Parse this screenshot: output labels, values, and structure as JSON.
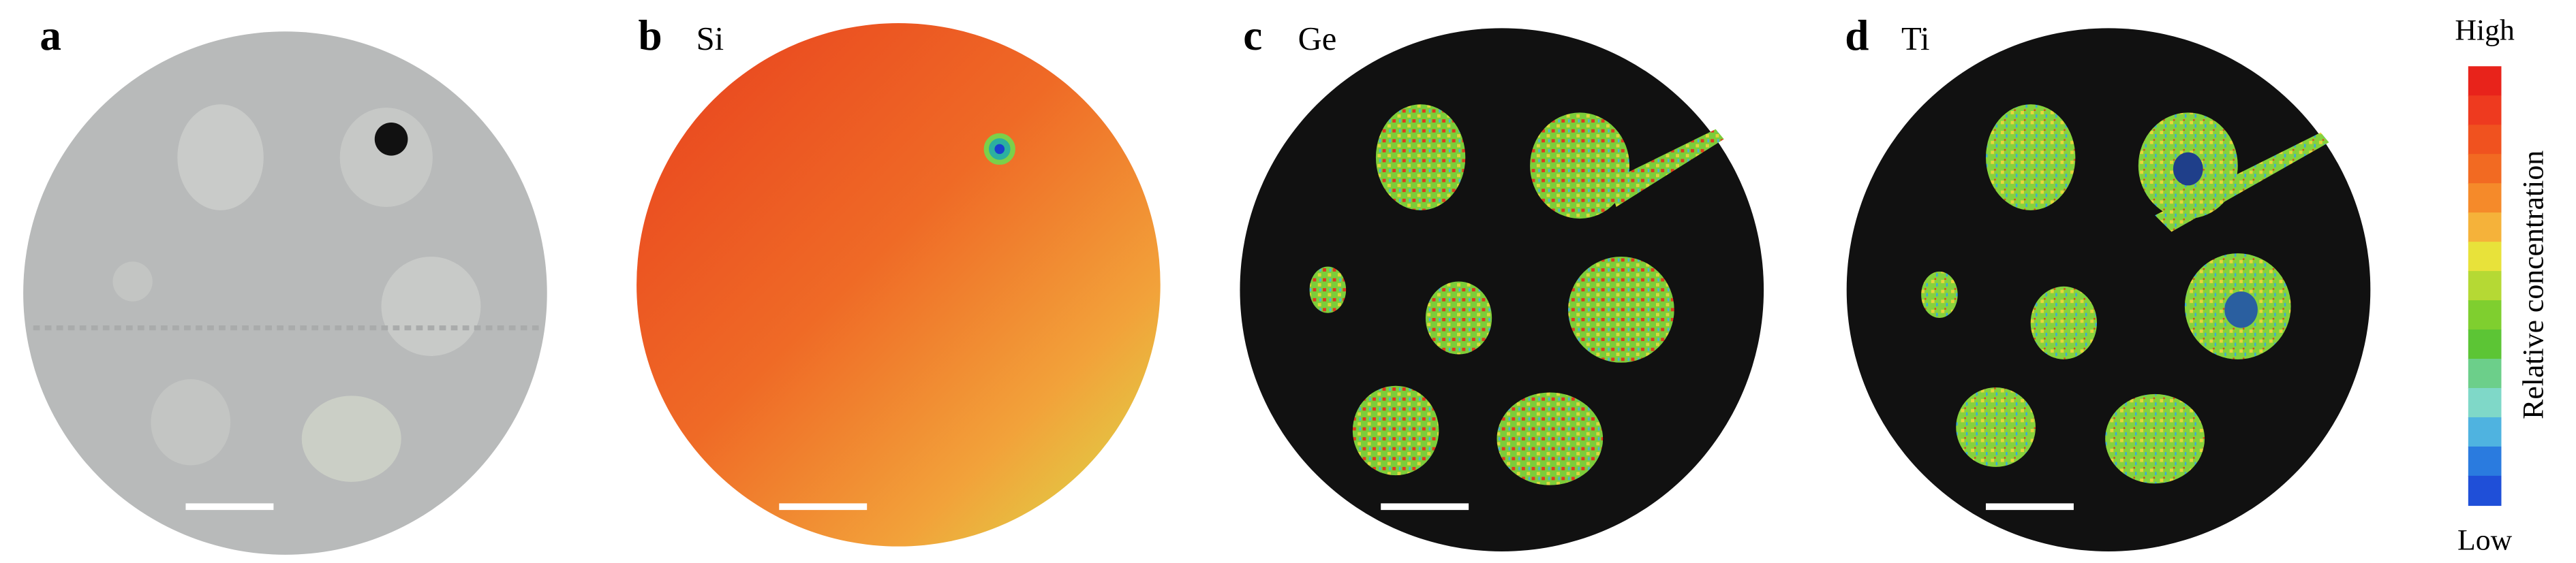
{
  "panels": [
    {
      "label": "a"
    },
    {
      "label": "b",
      "element": "Si"
    },
    {
      "label": "c",
      "element": "Ge"
    },
    {
      "label": "d",
      "element": "Ti"
    }
  ],
  "colorbar": {
    "high": "High",
    "low": "Low",
    "title": "Relative concentration"
  }
}
